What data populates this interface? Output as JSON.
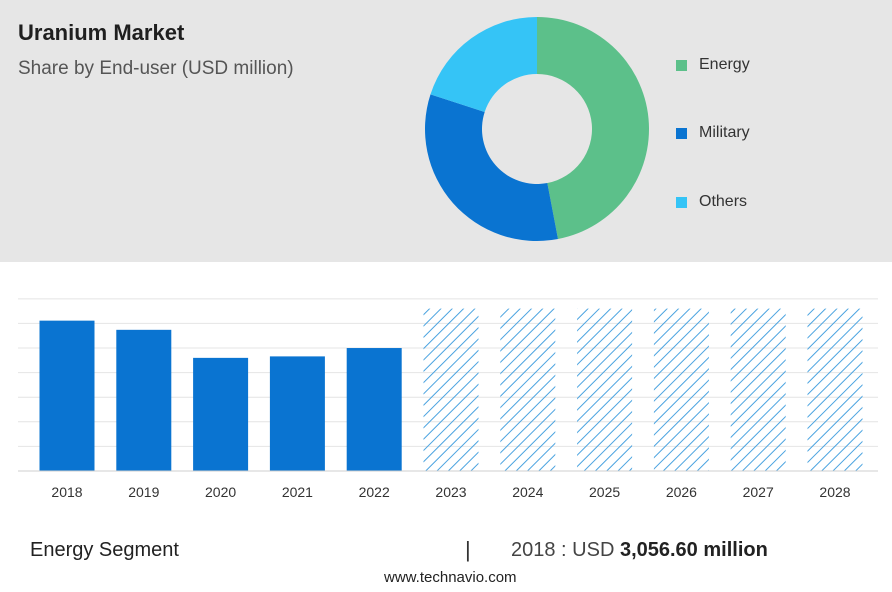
{
  "header": {
    "title": "Uranium Market",
    "subtitle": "Share by End-user (USD million)"
  },
  "donut": {
    "segments": [
      {
        "name": "Energy",
        "share": 0.47,
        "color": "#5cc08a"
      },
      {
        "name": "Military",
        "share": 0.33,
        "color": "#0a74d1"
      },
      {
        "name": "Others",
        "share": 0.2,
        "color": "#35c4f6"
      }
    ]
  },
  "chart_data": {
    "type": "bar",
    "categories": [
      "2018",
      "2019",
      "2020",
      "2021",
      "2022",
      "2023",
      "2024",
      "2025",
      "2026",
      "2027",
      "2028"
    ],
    "series": [
      {
        "values": [
          3056.6,
          2870,
          2300,
          2330,
          2500,
          null,
          null,
          null,
          null,
          null,
          null
        ]
      }
    ],
    "forecast_categories": [
      "2023",
      "2024",
      "2025",
      "2026",
      "2027",
      "2028"
    ],
    "ylim": [
      0,
      3700
    ],
    "grid": true,
    "colors": {
      "actual": "#0a74d1",
      "forecast_hatch": "#4aa3e0"
    }
  },
  "footer": {
    "segment_label": "Energy Segment",
    "separator": "|",
    "year_value": "2018 : USD ",
    "value_strong": "3,056.60 million",
    "website": "www.technavio.com"
  }
}
